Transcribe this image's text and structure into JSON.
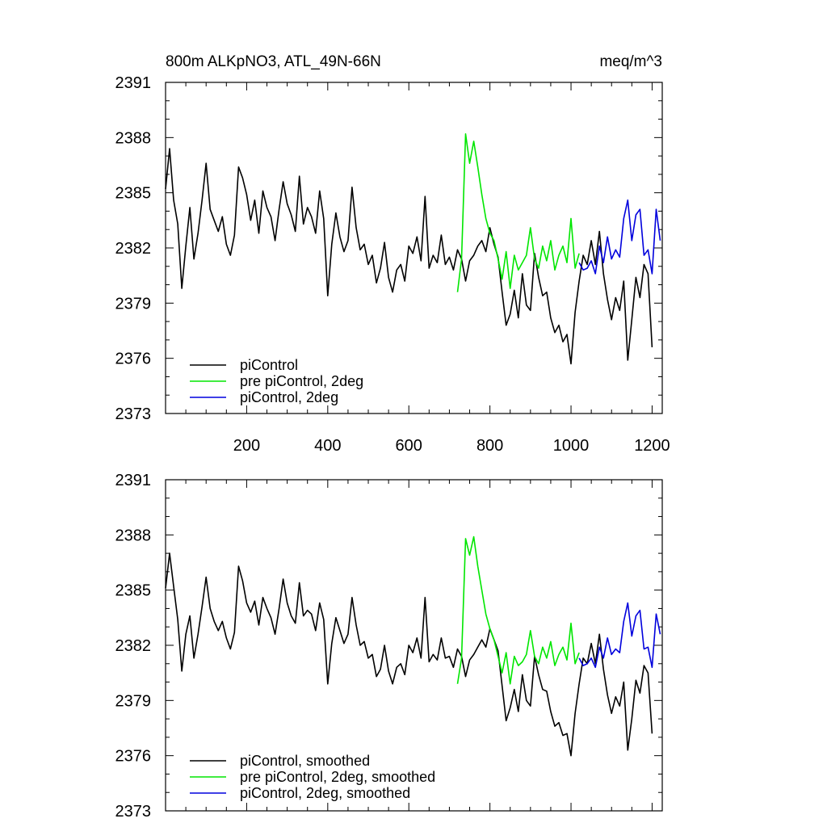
{
  "chart_data": [
    {
      "type": "line",
      "title_left": "800m ALKpNO3, ATL_49N-66N",
      "title_right": "meq/m^3",
      "xlim": [
        0,
        1225
      ],
      "ylim": [
        2373,
        2391
      ],
      "x_ticks": [
        200,
        400,
        600,
        800,
        1000,
        1200
      ],
      "x_tick_labels": [
        "200",
        "400",
        "600",
        "800",
        "1000",
        "1200"
      ],
      "y_ticks": [
        2373,
        2376,
        2379,
        2382,
        2385,
        2388,
        2391
      ],
      "y_tick_labels": [
        "2373",
        "2376",
        "2379",
        "2382",
        "2385",
        "2388",
        "2391"
      ],
      "legend_position": "bottom-left",
      "series": [
        {
          "name": "piControl",
          "color": "#000000",
          "x": [
            0,
            10,
            20,
            30,
            40,
            50,
            60,
            70,
            80,
            90,
            100,
            110,
            120,
            130,
            140,
            150,
            160,
            170,
            180,
            190,
            200,
            210,
            220,
            230,
            240,
            250,
            260,
            270,
            280,
            290,
            300,
            310,
            320,
            330,
            340,
            350,
            360,
            370,
            380,
            390,
            400,
            410,
            420,
            430,
            440,
            450,
            460,
            470,
            480,
            490,
            500,
            510,
            520,
            530,
            540,
            550,
            560,
            570,
            580,
            590,
            600,
            610,
            620,
            630,
            640,
            650,
            660,
            670,
            680,
            690,
            700,
            710,
            720,
            730,
            740,
            750,
            760,
            770,
            780,
            790,
            800,
            810,
            820,
            830,
            840,
            850,
            860,
            870,
            880,
            890,
            900,
            910,
            920,
            930,
            940,
            950,
            960,
            970,
            980,
            990,
            1000,
            1010,
            1020,
            1030,
            1040,
            1050,
            1060,
            1070,
            1080,
            1090,
            1100,
            1110,
            1120,
            1130,
            1140,
            1150,
            1160,
            1170,
            1180,
            1190,
            1200
          ],
          "values": [
            2385.2,
            2387.4,
            2384.6,
            2383.3,
            2379.8,
            2382.1,
            2384.2,
            2381.4,
            2382.8,
            2384.6,
            2386.6,
            2384.1,
            2383.5,
            2382.9,
            2383.7,
            2382.2,
            2381.6,
            2382.7,
            2386.4,
            2385.8,
            2384.9,
            2383.5,
            2384.6,
            2382.8,
            2385.1,
            2384.2,
            2383.7,
            2382.4,
            2384.1,
            2385.6,
            2384.4,
            2383.8,
            2382.9,
            2385.9,
            2383.3,
            2384.2,
            2383.7,
            2382.8,
            2385.1,
            2383.6,
            2379.4,
            2382.2,
            2383.9,
            2382.6,
            2381.8,
            2382.4,
            2385.3,
            2383.1,
            2381.9,
            2382.2,
            2381.1,
            2381.6,
            2380.1,
            2380.9,
            2382.3,
            2380.4,
            2379.6,
            2380.8,
            2381.1,
            2380.2,
            2382.1,
            2381.7,
            2382.6,
            2381.3,
            2384.8,
            2380.9,
            2381.6,
            2381.2,
            2382.7,
            2381.1,
            2381.5,
            2380.8,
            2381.9,
            2381.4,
            2380.2,
            2381.3,
            2381.6,
            2382.1,
            2382.4,
            2381.8,
            2383.1,
            2382.2,
            2381.5,
            2379.6,
            2377.8,
            2378.4,
            2379.7,
            2378.2,
            2380.6,
            2378.9,
            2378.6,
            2381.7,
            2380.4,
            2379.4,
            2379.6,
            2378.2,
            2377.4,
            2377.8,
            2376.9,
            2377.3,
            2375.7,
            2378.5,
            2380.2,
            2381.6,
            2381.1,
            2382.4,
            2381.1,
            2382.9,
            2380.6,
            2379.2,
            2378.1,
            2379.3,
            2378.6,
            2380.2,
            2375.9,
            2378.1,
            2380.4,
            2379.3,
            2381.1,
            2380.6,
            2376.6
          ]
        },
        {
          "name": "pre piControl, 2deg",
          "color": "#00e600",
          "x": [
            720,
            730,
            740,
            750,
            760,
            770,
            780,
            790,
            800,
            810,
            820,
            830,
            840,
            850,
            860,
            870,
            880,
            890,
            900,
            910,
            920,
            930,
            940,
            950,
            960,
            970,
            980,
            990,
            1000,
            1010,
            1020
          ],
          "values": [
            2379.6,
            2381.4,
            2388.2,
            2386.6,
            2387.8,
            2386.4,
            2384.9,
            2383.6,
            2382.8,
            2382.4,
            2381.4,
            2380.3,
            2381.8,
            2379.8,
            2381.6,
            2380.8,
            2381.2,
            2381.6,
            2383.1,
            2381.4,
            2380.9,
            2382.1,
            2381.3,
            2382.4,
            2380.8,
            2381.6,
            2382.1,
            2381.2,
            2383.6,
            2380.9,
            2381.7
          ]
        },
        {
          "name": "piControl, 2deg",
          "color": "#0000dd",
          "x": [
            1020,
            1030,
            1040,
            1050,
            1060,
            1070,
            1080,
            1090,
            1100,
            1110,
            1120,
            1130,
            1140,
            1150,
            1160,
            1170,
            1180,
            1190,
            1200,
            1210,
            1220
          ],
          "values": [
            2381.2,
            2380.8,
            2380.9,
            2381.3,
            2380.6,
            2382.1,
            2381.2,
            2382.6,
            2381.4,
            2381.9,
            2381.5,
            2383.6,
            2384.6,
            2382.4,
            2383.8,
            2384.1,
            2381.6,
            2381.9,
            2380.6,
            2384.1,
            2382.4
          ]
        }
      ]
    },
    {
      "type": "line",
      "xlim": [
        0,
        1225
      ],
      "ylim": [
        2373,
        2391
      ],
      "x_ticks": [
        200,
        400,
        600,
        800,
        1000,
        1200
      ],
      "y_ticks": [
        2373,
        2376,
        2379,
        2382,
        2385,
        2388,
        2391
      ],
      "y_tick_labels": [
        "2373",
        "2376",
        "2379",
        "2382",
        "2385",
        "2388",
        "2391"
      ],
      "legend_position": "bottom-left",
      "series": [
        {
          "name": "piControl, smoothed",
          "color": "#000000",
          "x": [
            0,
            10,
            20,
            30,
            40,
            50,
            60,
            70,
            80,
            90,
            100,
            110,
            120,
            130,
            140,
            150,
            160,
            170,
            180,
            190,
            200,
            210,
            220,
            230,
            240,
            250,
            260,
            270,
            280,
            290,
            300,
            310,
            320,
            330,
            340,
            350,
            360,
            370,
            380,
            390,
            400,
            410,
            420,
            430,
            440,
            450,
            460,
            470,
            480,
            490,
            500,
            510,
            520,
            530,
            540,
            550,
            560,
            570,
            580,
            590,
            600,
            610,
            620,
            630,
            640,
            650,
            660,
            670,
            680,
            690,
            700,
            710,
            720,
            730,
            740,
            750,
            760,
            770,
            780,
            790,
            800,
            810,
            820,
            830,
            840,
            850,
            860,
            870,
            880,
            890,
            900,
            910,
            920,
            930,
            940,
            950,
            960,
            970,
            980,
            990,
            1000,
            1010,
            1020,
            1030,
            1040,
            1050,
            1060,
            1070,
            1080,
            1090,
            1100,
            1110,
            1120,
            1130,
            1140,
            1150,
            1160,
            1170,
            1180,
            1190,
            1200
          ],
          "values": [
            2385.1,
            2387.0,
            2385.2,
            2383.4,
            2380.6,
            2382.6,
            2383.6,
            2381.3,
            2382.6,
            2384.1,
            2385.7,
            2384.0,
            2383.3,
            2382.8,
            2383.3,
            2382.4,
            2381.8,
            2382.7,
            2386.3,
            2385.5,
            2384.3,
            2383.8,
            2384.4,
            2383.1,
            2384.6,
            2384.0,
            2383.5,
            2382.6,
            2384.0,
            2385.6,
            2384.3,
            2383.6,
            2383.2,
            2385.4,
            2383.6,
            2383.9,
            2383.7,
            2382.8,
            2384.3,
            2383.4,
            2379.9,
            2382.1,
            2383.5,
            2382.8,
            2382.1,
            2382.6,
            2384.6,
            2383.1,
            2382.0,
            2382.2,
            2381.3,
            2381.5,
            2380.3,
            2380.7,
            2382.0,
            2380.6,
            2379.9,
            2380.8,
            2381.0,
            2380.4,
            2382.0,
            2381.6,
            2382.4,
            2381.3,
            2384.6,
            2381.1,
            2381.5,
            2381.2,
            2382.4,
            2381.3,
            2381.4,
            2380.8,
            2381.8,
            2381.4,
            2380.3,
            2381.2,
            2381.5,
            2381.9,
            2382.3,
            2381.9,
            2382.9,
            2382.3,
            2381.7,
            2379.8,
            2377.9,
            2378.6,
            2379.6,
            2378.4,
            2380.4,
            2379.0,
            2378.7,
            2381.4,
            2380.4,
            2379.6,
            2379.5,
            2378.4,
            2377.6,
            2377.8,
            2377.1,
            2377.2,
            2376.0,
            2378.3,
            2379.9,
            2381.3,
            2381.0,
            2382.1,
            2381.0,
            2382.6,
            2380.7,
            2379.3,
            2378.3,
            2379.2,
            2378.7,
            2380.0,
            2376.3,
            2378.0,
            2380.1,
            2379.4,
            2380.9,
            2380.5,
            2377.2
          ]
        },
        {
          "name": "pre piControl, 2deg, smoothed",
          "color": "#00e600",
          "x": [
            720,
            730,
            740,
            750,
            760,
            770,
            780,
            790,
            800,
            810,
            820,
            830,
            840,
            850,
            860,
            870,
            880,
            890,
            900,
            910,
            920,
            930,
            940,
            950,
            960,
            970,
            980,
            990,
            1000,
            1010,
            1020
          ],
          "values": [
            2379.9,
            2381.3,
            2387.8,
            2386.9,
            2387.9,
            2386.3,
            2385.0,
            2383.7,
            2382.9,
            2382.3,
            2381.4,
            2380.5,
            2381.6,
            2379.9,
            2381.4,
            2380.9,
            2381.1,
            2381.5,
            2382.8,
            2381.4,
            2381.0,
            2381.9,
            2381.3,
            2382.2,
            2380.9,
            2381.5,
            2381.9,
            2381.2,
            2383.2,
            2381.0,
            2381.6
          ]
        },
        {
          "name": "piControl, 2deg, smoothed",
          "color": "#0000dd",
          "x": [
            1020,
            1030,
            1040,
            1050,
            1060,
            1070,
            1080,
            1090,
            1100,
            1110,
            1120,
            1130,
            1140,
            1150,
            1160,
            1170,
            1180,
            1190,
            1200,
            1210,
            1220
          ],
          "values": [
            2381.3,
            2380.9,
            2381.0,
            2381.3,
            2380.8,
            2381.9,
            2381.3,
            2382.4,
            2381.5,
            2381.8,
            2381.6,
            2383.3,
            2384.3,
            2382.5,
            2383.6,
            2383.9,
            2381.8,
            2381.9,
            2380.8,
            2383.7,
            2382.6
          ]
        }
      ]
    }
  ]
}
